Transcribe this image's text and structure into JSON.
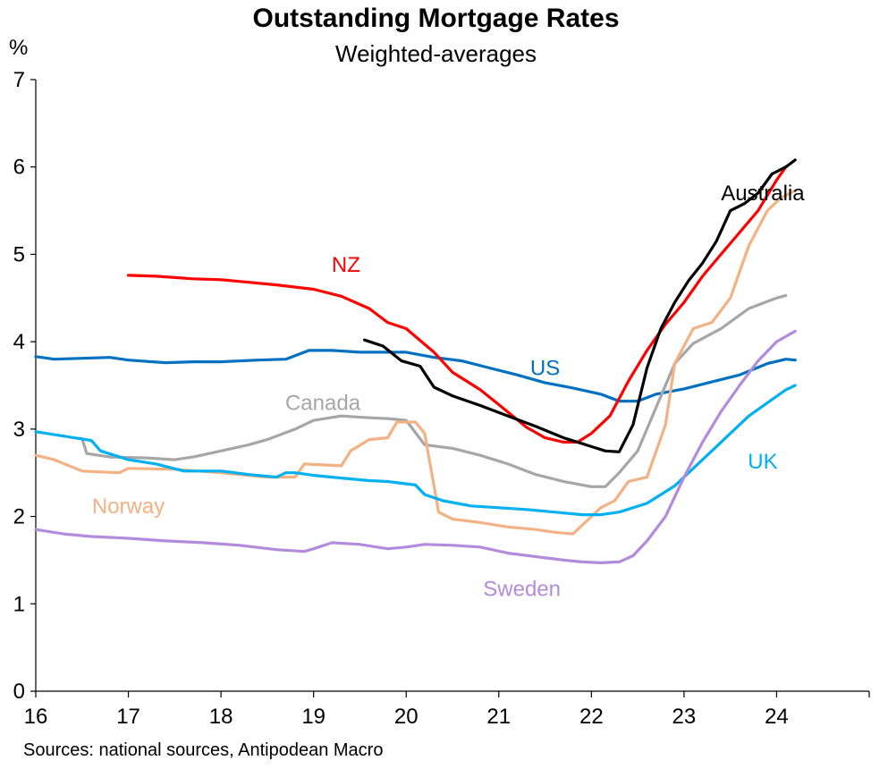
{
  "chart_data": {
    "type": "line",
    "title": "Outstanding Mortgage Rates",
    "subtitle": "Weighted-averages",
    "ylabel": "%",
    "source": "Sources: national sources, Antipodean Macro",
    "xlim": [
      16,
      25
    ],
    "ylim": [
      0,
      7
    ],
    "x_ticks": [
      16,
      17,
      18,
      19,
      20,
      21,
      22,
      23,
      24
    ],
    "x_tick_labels": [
      "16",
      "17",
      "18",
      "19",
      "20",
      "21",
      "22",
      "23",
      "24"
    ],
    "y_ticks": [
      0,
      1,
      2,
      3,
      4,
      5,
      6,
      7
    ],
    "y_tick_labels": [
      "0",
      "1",
      "2",
      "3",
      "4",
      "5",
      "6",
      "7"
    ],
    "series": [
      {
        "name": "US",
        "color": "#0070C0",
        "x": [
          16,
          16.2,
          16.5,
          16.8,
          17,
          17.4,
          17.7,
          18,
          18.4,
          18.7,
          18.95,
          19.2,
          19.5,
          19.8,
          20,
          20.3,
          20.6,
          20.9,
          21.2,
          21.5,
          21.8,
          22.1,
          22.3,
          22.5,
          22.7,
          23,
          23.3,
          23.6,
          23.9,
          24.1,
          24.2
        ],
        "values": [
          3.83,
          3.8,
          3.81,
          3.82,
          3.79,
          3.76,
          3.77,
          3.77,
          3.79,
          3.8,
          3.9,
          3.9,
          3.88,
          3.88,
          3.88,
          3.82,
          3.78,
          3.7,
          3.62,
          3.53,
          3.47,
          3.4,
          3.32,
          3.32,
          3.4,
          3.46,
          3.54,
          3.62,
          3.75,
          3.8,
          3.79
        ]
      },
      {
        "name": "NZ",
        "color": "#FF0000",
        "x": [
          17,
          17.3,
          17.7,
          18,
          18.3,
          18.6,
          19,
          19.3,
          19.6,
          19.8,
          20,
          20.3,
          20.5,
          20.8,
          21,
          21.3,
          21.5,
          21.7,
          21.85,
          22,
          22.2,
          22.4,
          22.6,
          22.8,
          23,
          23.2,
          23.4,
          23.6,
          23.8,
          24,
          24.1
        ],
        "values": [
          4.76,
          4.75,
          4.72,
          4.71,
          4.68,
          4.65,
          4.6,
          4.52,
          4.38,
          4.22,
          4.15,
          3.88,
          3.65,
          3.45,
          3.28,
          3.02,
          2.9,
          2.85,
          2.85,
          2.95,
          3.15,
          3.55,
          3.9,
          4.2,
          4.45,
          4.75,
          5.0,
          5.25,
          5.5,
          5.85,
          6.0
        ]
      },
      {
        "name": "Australia",
        "color": "#000000",
        "x": [
          19.55,
          19.75,
          19.95,
          20.15,
          20.3,
          20.5,
          20.8,
          21.1,
          21.4,
          21.7,
          22,
          22.15,
          22.3,
          22.45,
          22.6,
          22.75,
          22.9,
          23.05,
          23.2,
          23.35,
          23.5,
          23.65,
          23.8,
          23.95,
          24.1,
          24.2
        ],
        "values": [
          4.02,
          3.95,
          3.78,
          3.72,
          3.48,
          3.38,
          3.27,
          3.15,
          3.03,
          2.9,
          2.8,
          2.75,
          2.74,
          3.05,
          3.7,
          4.15,
          4.45,
          4.7,
          4.9,
          5.15,
          5.5,
          5.58,
          5.7,
          5.92,
          6.0,
          6.08
        ]
      },
      {
        "name": "Canada",
        "color": "#A6A6A6",
        "x": [
          16.5,
          16.55,
          16.8,
          17.2,
          17.5,
          17.7,
          18,
          18.3,
          18.5,
          18.8,
          19,
          19.3,
          19.6,
          19.8,
          20,
          20.2,
          20.5,
          20.8,
          21.1,
          21.4,
          21.7,
          22,
          22.15,
          22.3,
          22.5,
          22.7,
          22.9,
          23.1,
          23.4,
          23.7,
          24,
          24.1
        ],
        "values": [
          2.89,
          2.72,
          2.68,
          2.67,
          2.65,
          2.68,
          2.75,
          2.82,
          2.88,
          3.0,
          3.1,
          3.15,
          3.13,
          3.12,
          3.1,
          2.82,
          2.78,
          2.7,
          2.6,
          2.48,
          2.4,
          2.34,
          2.34,
          2.5,
          2.75,
          3.25,
          3.75,
          3.98,
          4.15,
          4.38,
          4.5,
          4.53
        ]
      },
      {
        "name": "Norway",
        "color": "#F4B183",
        "x": [
          16,
          16.2,
          16.5,
          16.9,
          17,
          17.5,
          18,
          18.5,
          18.8,
          18.9,
          19.3,
          19.4,
          19.6,
          19.8,
          19.9,
          20.1,
          20.2,
          20.35,
          20.5,
          20.8,
          21.1,
          21.4,
          21.6,
          21.8,
          21.95,
          22.1,
          22.25,
          22.4,
          22.6,
          22.8,
          22.9,
          23.1,
          23.3,
          23.5,
          23.7,
          23.9,
          24.05,
          24.2
        ],
        "values": [
          2.7,
          2.65,
          2.52,
          2.5,
          2.55,
          2.54,
          2.5,
          2.45,
          2.45,
          2.6,
          2.58,
          2.75,
          2.88,
          2.9,
          3.08,
          3.08,
          2.95,
          2.05,
          1.97,
          1.93,
          1.88,
          1.85,
          1.82,
          1.8,
          1.95,
          2.1,
          2.18,
          2.4,
          2.45,
          3.05,
          3.75,
          4.15,
          4.22,
          4.5,
          5.1,
          5.5,
          5.65,
          5.73
        ]
      },
      {
        "name": "UK",
        "color": "#00B0F0",
        "x": [
          16,
          16.3,
          16.6,
          16.7,
          17,
          17.3,
          17.6,
          18,
          18.3,
          18.6,
          18.7,
          18.8,
          19,
          19.3,
          19.6,
          19.8,
          20.1,
          20.2,
          20.4,
          20.7,
          21,
          21.3,
          21.6,
          21.9,
          22.1,
          22.3,
          22.6,
          22.9,
          23.1,
          23.3,
          23.5,
          23.7,
          23.9,
          24.1,
          24.2
        ],
        "values": [
          2.97,
          2.92,
          2.87,
          2.75,
          2.65,
          2.6,
          2.52,
          2.52,
          2.48,
          2.45,
          2.5,
          2.5,
          2.47,
          2.44,
          2.41,
          2.4,
          2.36,
          2.25,
          2.18,
          2.12,
          2.1,
          2.08,
          2.05,
          2.02,
          2.02,
          2.05,
          2.15,
          2.35,
          2.55,
          2.75,
          2.95,
          3.15,
          3.3,
          3.45,
          3.5
        ]
      },
      {
        "name": "Sweden",
        "color": "#B38BDC",
        "x": [
          16,
          16.3,
          16.6,
          17,
          17.4,
          17.8,
          18.2,
          18.6,
          18.9,
          19,
          19.2,
          19.5,
          19.8,
          20,
          20.2,
          20.5,
          20.8,
          21.1,
          21.4,
          21.7,
          21.9,
          22.1,
          22.3,
          22.45,
          22.6,
          22.8,
          23,
          23.2,
          23.4,
          23.6,
          23.8,
          24,
          24.2
        ],
        "values": [
          1.85,
          1.8,
          1.77,
          1.75,
          1.72,
          1.7,
          1.67,
          1.62,
          1.6,
          1.63,
          1.7,
          1.68,
          1.63,
          1.65,
          1.68,
          1.67,
          1.65,
          1.58,
          1.54,
          1.5,
          1.48,
          1.47,
          1.48,
          1.55,
          1.72,
          2.0,
          2.45,
          2.85,
          3.2,
          3.5,
          3.78,
          4.0,
          4.12
        ]
      }
    ],
    "series_labels": [
      {
        "name": "Australia",
        "text": "Australia",
        "at": [
          23.85,
          5.7
        ]
      },
      {
        "name": "NZ",
        "text": "NZ",
        "at": [
          19.35,
          4.88
        ]
      },
      {
        "name": "US",
        "text": "US",
        "at": [
          21.5,
          3.7
        ]
      },
      {
        "name": "Canada",
        "text": "Canada",
        "at": [
          19.1,
          3.3
        ]
      },
      {
        "name": "UK",
        "text": "UK",
        "at": [
          23.85,
          2.63
        ]
      },
      {
        "name": "Norway",
        "text": "Norway",
        "at": [
          17.0,
          2.12
        ]
      },
      {
        "name": "Sweden",
        "text": "Sweden",
        "at": [
          21.25,
          1.17
        ]
      }
    ]
  }
}
